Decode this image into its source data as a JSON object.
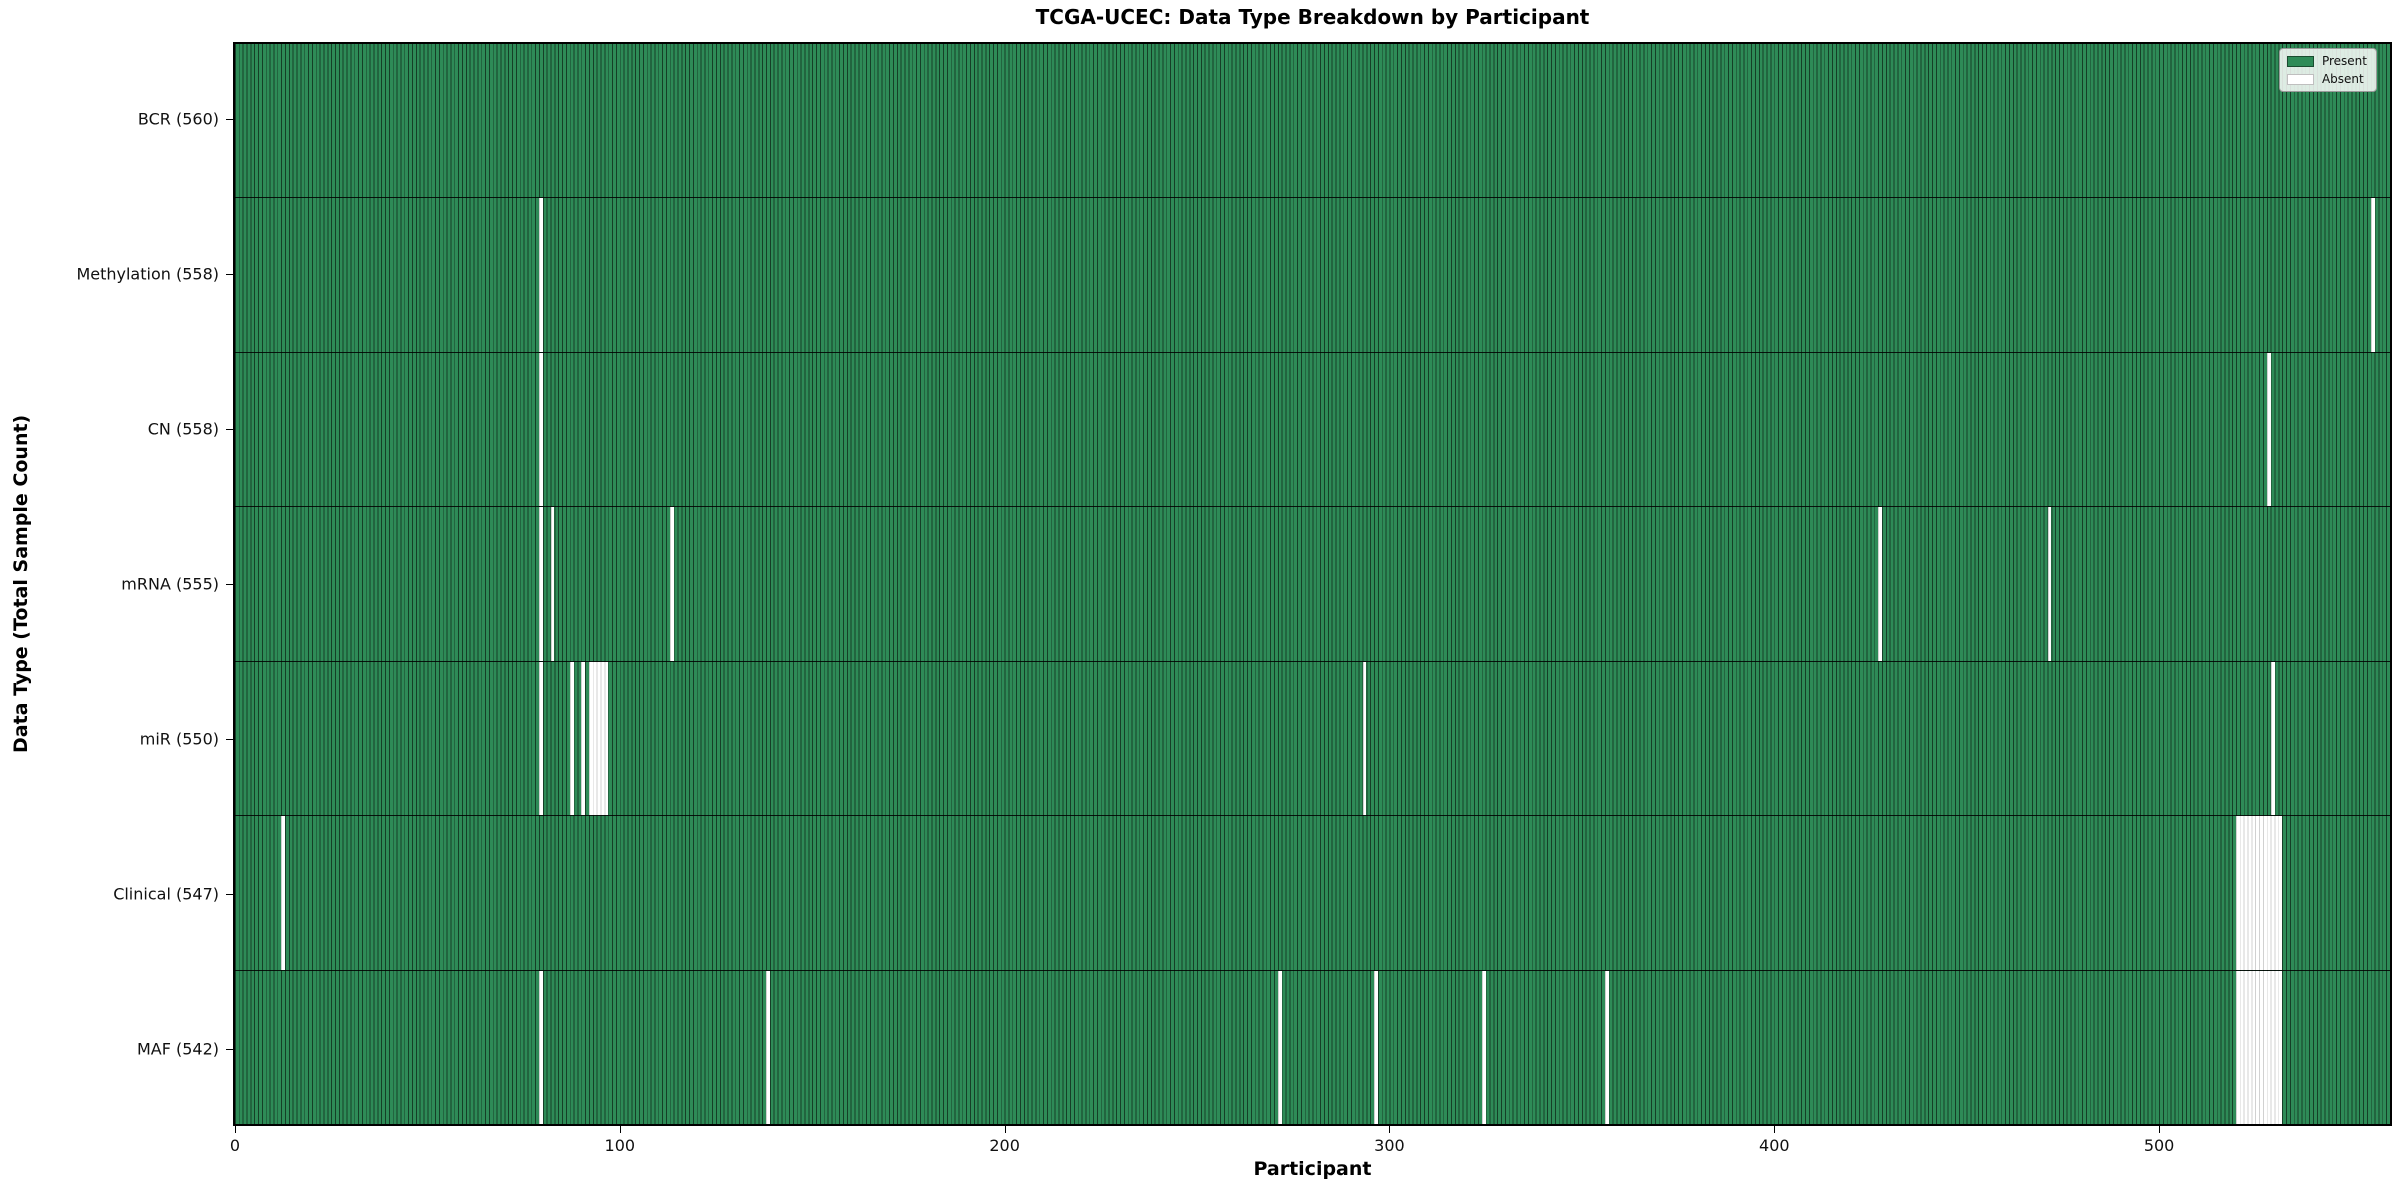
{
  "title": "TCGA-UCEC: Data Type Breakdown by Participant",
  "xlabel": "Participant",
  "ylabel": "Data Type (Total Sample Count)",
  "legend": {
    "present_label": "Present",
    "absent_label": "Absent"
  },
  "colors": {
    "present_fill": "#2e8b57",
    "present_edge": "rgba(0,0,0,0.55)",
    "absent_fill": "#ffffff",
    "absent_edge": "rgba(0,0,0,0.18)",
    "row_divider": "#000000"
  },
  "chart_data": {
    "type": "heatmap",
    "title": "TCGA-UCEC: Data Type Breakdown by Participant",
    "xlabel": "Participant",
    "ylabel": "Data Type (Total Sample Count)",
    "x_range": [
      0,
      560
    ],
    "x_ticks": [
      0,
      100,
      200,
      300,
      400,
      500
    ],
    "n_participants": 560,
    "legend_entries": [
      "Present",
      "Absent"
    ],
    "legend_position": "upper right",
    "rows": [
      {
        "name": "BCR",
        "label": "BCR (560)",
        "total": 560,
        "absent_participants": []
      },
      {
        "name": "Methylation",
        "label": "Methylation (558)",
        "total": 558,
        "absent_participants": [
          79,
          555
        ]
      },
      {
        "name": "CN",
        "label": "CN (558)",
        "total": 558,
        "absent_participants": [
          79,
          528
        ]
      },
      {
        "name": "mRNA",
        "label": "mRNA (555)",
        "total": 555,
        "absent_participants": [
          79,
          82,
          113,
          427,
          471
        ]
      },
      {
        "name": "miR",
        "label": "miR (550)",
        "total": 550,
        "absent_participants": [
          79,
          87,
          90,
          92,
          93,
          94,
          95,
          96,
          293,
          529
        ]
      },
      {
        "name": "Clinical",
        "label": "Clinical (547)",
        "total": 547,
        "absent_participants": [
          12,
          520,
          521,
          522,
          523,
          524,
          525,
          526,
          527,
          528,
          529,
          530,
          531
        ]
      },
      {
        "name": "MAF",
        "label": "MAF (542)",
        "total": 542,
        "absent_participants": [
          79,
          138,
          271,
          296,
          324,
          356,
          520,
          521,
          522,
          523,
          524,
          525,
          526,
          527,
          528,
          529,
          530,
          531
        ]
      }
    ]
  }
}
